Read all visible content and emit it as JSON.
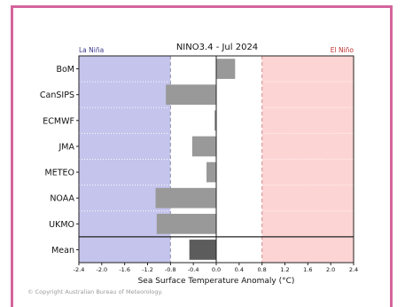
{
  "chart_data": {
    "type": "bar",
    "orientation": "horizontal",
    "title": "NINO3.4 - Jul 2024",
    "xlabel": "Sea Surface Temperature Anomaly (°C)",
    "ylabel": "",
    "xlim": [
      -2.4,
      2.4
    ],
    "x_ticks": [
      "-2.4",
      "-2.0",
      "-1.6",
      "-1.2",
      "-0.8",
      "-0.4",
      "0.0",
      "0.4",
      "0.8",
      "1.2",
      "1.6",
      "2.0",
      "2.4"
    ],
    "categories": [
      "BoM",
      "CanSIPS",
      "ECMWF",
      "JMA",
      "METEO",
      "NOAA",
      "UKMO",
      "Mean"
    ],
    "values": [
      0.33,
      -0.88,
      -0.03,
      -0.42,
      -0.17,
      -1.06,
      -1.04,
      -0.47
    ],
    "threshold_left": -0.8,
    "threshold_right": 0.8,
    "region_left_label": "La Niña",
    "region_right_label": "El Niño",
    "grid": false,
    "legend": "none"
  },
  "colors": {
    "la_nina_region": "#c4c4ec",
    "el_nino_region": "#fdd4d4",
    "la_nina_text": "#3a3a8c",
    "el_nino_text": "#c03030",
    "bar": "#999999",
    "mean_bar": "#5c5c5c",
    "frame_border": "#d4649b"
  },
  "footer": {
    "copyright": "© Copyright Australian Bureau of Meteorology."
  }
}
